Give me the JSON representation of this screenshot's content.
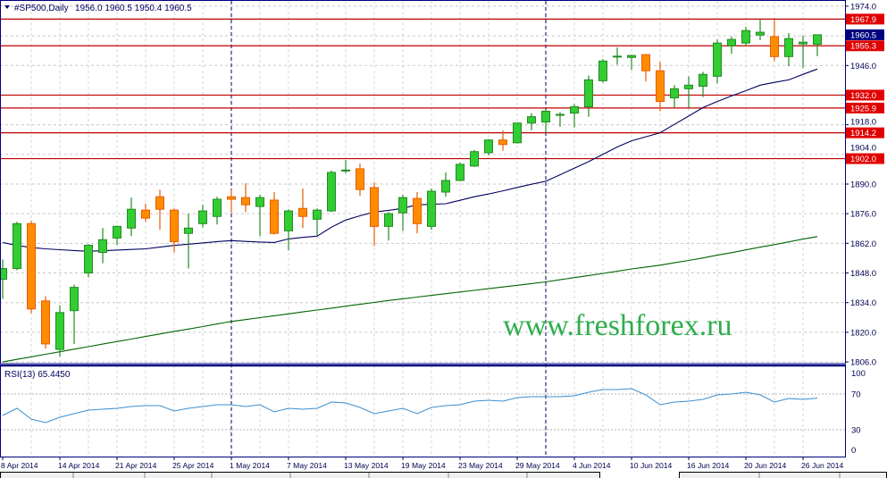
{
  "header": {
    "symbol_timeframe": "#SP500,Daily",
    "ohlc_text": "1956.0 1960.5 1950.4 1960.5",
    "arrow_icon": "triangle-down-icon"
  },
  "watermark": "www.freshforex.ru",
  "rsi_label": "RSI(13) 65.4450",
  "colors": {
    "bull_fill": "#32cd32",
    "bull_edge": "#228b22",
    "bear_fill": "#ff8c00",
    "bear_edge": "#e65c00",
    "ma_fast": "#000060",
    "ma_slow": "#006400",
    "level_line": "#c00000",
    "level_box": "#e00000",
    "current_box": "#000080",
    "rsi_line": "#3c8fd0",
    "frame": "#000080"
  },
  "chart_data": {
    "type": "candlestick",
    "price_ylim": [
      1805.6,
      1976.5
    ],
    "price_ticks": [
      "1974.0",
      "1946.0",
      "1918.0",
      "1904.0",
      "1890.0",
      "1876.0",
      "1862.0",
      "1848.0",
      "1834.0",
      "1820.0",
      "1806.0"
    ],
    "current_price": "1960.5",
    "levels": [
      "1967.9",
      "1955.3",
      "1932.0",
      "1925.9",
      "1914.2",
      "1902.0"
    ],
    "month_separators": [
      "1 May 2014",
      "2 Jun 2014"
    ],
    "date_labels": [
      "8 Apr 2014",
      "14 Apr 2014",
      "21 Apr 2014",
      "25 Apr 2014",
      "1 May 2014",
      "7 May 2014",
      "13 May 2014",
      "19 May 2014",
      "23 May 2014",
      "29 May 2014",
      "4 Jun 2014",
      "10 Jun 2014",
      "16 Jun 2014",
      "20 Jun 2014",
      "26 Jun 2014"
    ],
    "grid": true,
    "ohlc_columns": [
      "date",
      "open",
      "high",
      "low",
      "close"
    ],
    "ohlc": [
      [
        "8 Apr 2014",
        1845.0,
        1854.4,
        1835.7,
        1850.1
      ],
      [
        "9 Apr 2014",
        1850.1,
        1872.2,
        1849.3,
        1871.3
      ],
      [
        "10 Apr 2014",
        1871.3,
        1872.6,
        1828.9,
        1831.0
      ],
      [
        "11 Apr 2014",
        1834.8,
        1837.0,
        1812.3,
        1814.5
      ],
      [
        "14 Apr 2014",
        1811.9,
        1832.7,
        1808.5,
        1829.3
      ],
      [
        "15 Apr 2014",
        1830.2,
        1842.5,
        1814.5,
        1841.2
      ],
      [
        "16 Apr 2014",
        1848.0,
        1861.5,
        1845.9,
        1861.1
      ],
      [
        "17 Apr 2014",
        1857.7,
        1869.2,
        1852.6,
        1863.7
      ],
      [
        "21 Apr 2014",
        1864.5,
        1870.4,
        1861.1,
        1870.0
      ],
      [
        "22 Apr 2014",
        1869.2,
        1883.6,
        1865.4,
        1878.1
      ],
      [
        "23 Apr 2014",
        1877.7,
        1880.7,
        1872.2,
        1873.9
      ],
      [
        "24 Apr 2014",
        1884.0,
        1887.4,
        1868.4,
        1878.1
      ],
      [
        "25 Apr 2014",
        1877.7,
        1878.5,
        1857.7,
        1862.8
      ],
      [
        "28 Apr 2014",
        1866.7,
        1876.0,
        1850.1,
        1869.2
      ],
      [
        "29 Apr 2014",
        1871.3,
        1880.2,
        1869.6,
        1877.3
      ],
      [
        "30 Apr 2014",
        1874.7,
        1884.0,
        1870.9,
        1882.8
      ],
      [
        "1 May 2014",
        1884.0,
        1887.4,
        1876.4,
        1882.8
      ],
      [
        "2 May 2014",
        1883.6,
        1890.4,
        1876.8,
        1880.2
      ],
      [
        "5 May 2014",
        1879.4,
        1884.9,
        1865.4,
        1883.6
      ],
      [
        "6 May 2014",
        1882.4,
        1886.2,
        1866.2,
        1866.7
      ],
      [
        "7 May 2014",
        1867.9,
        1878.1,
        1858.6,
        1877.3
      ],
      [
        "8 May 2014",
        1878.5,
        1887.9,
        1869.2,
        1874.7
      ],
      [
        "9 May 2014",
        1873.4,
        1878.5,
        1865.8,
        1877.7
      ],
      [
        "12 May 2014",
        1877.3,
        1896.4,
        1876.8,
        1895.5
      ],
      [
        "13 May 2014",
        1896.2,
        1901.4,
        1895.1,
        1896.6
      ],
      [
        "14 May 2014",
        1897.2,
        1899.7,
        1884.5,
        1887.4
      ],
      [
        "15 May 2014",
        1888.3,
        1890.8,
        1860.7,
        1870.0
      ],
      [
        "16 May 2014",
        1870.0,
        1876.8,
        1863.3,
        1876.0
      ],
      [
        "19 May 2014",
        1876.4,
        1884.9,
        1867.9,
        1883.6
      ],
      [
        "20 May 2014",
        1883.2,
        1886.2,
        1866.7,
        1871.3
      ],
      [
        "21 May 2014",
        1870.0,
        1887.9,
        1868.4,
        1886.6
      ],
      [
        "22 May 2014",
        1886.2,
        1895.5,
        1884.0,
        1891.7
      ],
      [
        "23 May 2014",
        1891.7,
        1900.2,
        1891.3,
        1899.3
      ],
      [
        "26 May 2014",
        1898.5,
        1906.1,
        1898.1,
        1905.3
      ],
      [
        "27 May 2014",
        1904.8,
        1911.2,
        1903.6,
        1910.8
      ],
      [
        "28 May 2014",
        1910.8,
        1915.4,
        1905.7,
        1908.7
      ],
      [
        "29 May 2014",
        1909.5,
        1918.8,
        1909.1,
        1918.8
      ],
      [
        "30 May 2014",
        1918.8,
        1923.5,
        1915.4,
        1921.8
      ],
      [
        "2 Jun 2014",
        1919.3,
        1925.2,
        1914.2,
        1924.4
      ],
      [
        "3 Jun 2014",
        1922.5,
        1923.9,
        1917.1,
        1922.9
      ],
      [
        "4 Jun 2014",
        1923.5,
        1927.8,
        1916.7,
        1926.5
      ],
      [
        "5 Jun 2014",
        1926.5,
        1941.3,
        1921.8,
        1939.2
      ],
      [
        "6 Jun 2014",
        1938.8,
        1949.0,
        1937.9,
        1948.1
      ],
      [
        "9 Jun 2014",
        1950.0,
        1954.5,
        1946.4,
        1950.4
      ],
      [
        "10 Jun 2014",
        1949.8,
        1951.0,
        1943.9,
        1950.7
      ],
      [
        "11 Jun 2014",
        1951.1,
        1951.5,
        1938.4,
        1943.5
      ],
      [
        "12 Jun 2014",
        1943.5,
        1947.7,
        1924.4,
        1929.0
      ],
      [
        "13 Jun 2014",
        1930.7,
        1936.7,
        1926.1,
        1935.0
      ],
      [
        "16 Jun 2014",
        1935.0,
        1940.9,
        1926.1,
        1936.7
      ],
      [
        "17 Jun 2014",
        1936.2,
        1943.0,
        1931.1,
        1941.8
      ],
      [
        "18 Jun 2014",
        1940.9,
        1958.3,
        1937.5,
        1956.6
      ],
      [
        "19 Jun 2014",
        1955.3,
        1959.6,
        1951.5,
        1958.3
      ],
      [
        "20 Jun 2014",
        1956.6,
        1964.2,
        1955.3,
        1962.5
      ],
      [
        "23 Jun 2014",
        1960.4,
        1967.6,
        1957.9,
        1961.7
      ],
      [
        "24 Jun 2014",
        1959.6,
        1967.6,
        1948.1,
        1950.2
      ],
      [
        "25 Jun 2014",
        1950.2,
        1961.3,
        1945.6,
        1958.7
      ],
      [
        "26 Jun 2014",
        1956.2,
        1960.0,
        1944.7,
        1957.0
      ],
      [
        "27 Jun 2014",
        1956.0,
        1960.5,
        1950.4,
        1960.5
      ]
    ],
    "ma_fast": [
      1862.4,
      1861,
      1860,
      1859.4,
      1859,
      1858.6,
      1858.2,
      1858.5,
      1858.8,
      1859.1,
      1859.4,
      1860.2,
      1861,
      1861.6,
      1862.2,
      1862.8,
      1863.3,
      1862.9,
      1862.6,
      1862.4,
      1864.1,
      1864.8,
      1865.4,
      1869.6,
      1873,
      1875,
      1876.8,
      1877.6,
      1878.5,
      1880.2,
      1880.4,
      1880.7,
      1882.3,
      1884,
      1885.3,
      1886.8,
      1888.4,
      1889.9,
      1891.3,
      1894.4,
      1897.5,
      1900.6,
      1904,
      1907.5,
      1910.4,
      1912.3,
      1914.2,
      1918.2,
      1922.1,
      1926.1,
      1929,
      1931.6,
      1934.1,
      1936.7,
      1938,
      1939.2,
      1941.8,
      1944.3
    ],
    "ma_slow": [
      1806.0,
      1807.2,
      1808.4,
      1809.6,
      1810.8,
      1812.0,
      1813.2,
      1814.4,
      1815.6,
      1816.8,
      1818.0,
      1819.2,
      1820.4,
      1821.5,
      1822.7,
      1823.9,
      1825.1,
      1826.0,
      1826.9,
      1827.8,
      1828.7,
      1829.6,
      1830.5,
      1831.4,
      1832.3,
      1833.2,
      1834.1,
      1835.0,
      1835.8,
      1836.6,
      1837.4,
      1838.2,
      1839.0,
      1839.8,
      1840.6,
      1841.4,
      1842.2,
      1843.0,
      1843.8,
      1844.8,
      1845.8,
      1846.8,
      1847.8,
      1848.8,
      1849.9,
      1850.8,
      1851.7,
      1852.8,
      1853.9,
      1855.1,
      1856.4,
      1857.6,
      1858.9,
      1860.2,
      1861.4,
      1862.7,
      1864.0,
      1865.2
    ],
    "rsi": {
      "period": 13,
      "ylim": [
        0,
        100
      ],
      "ticks": [
        "100",
        "70",
        "30",
        "0"
      ],
      "levels": [
        70,
        30
      ],
      "values": [
        46,
        54,
        42,
        38,
        44,
        48,
        52,
        53,
        54,
        56,
        57,
        57,
        51,
        54,
        56,
        58,
        58,
        56,
        58,
        50,
        54,
        53,
        54,
        61,
        60,
        55,
        48,
        51,
        54,
        48,
        55,
        57,
        58,
        62,
        63,
        62,
        66,
        67,
        67,
        67,
        68,
        72,
        75,
        75,
        76,
        69,
        58,
        61,
        62,
        64,
        69,
        70,
        72,
        69,
        61,
        65,
        64,
        65.445
      ]
    }
  }
}
